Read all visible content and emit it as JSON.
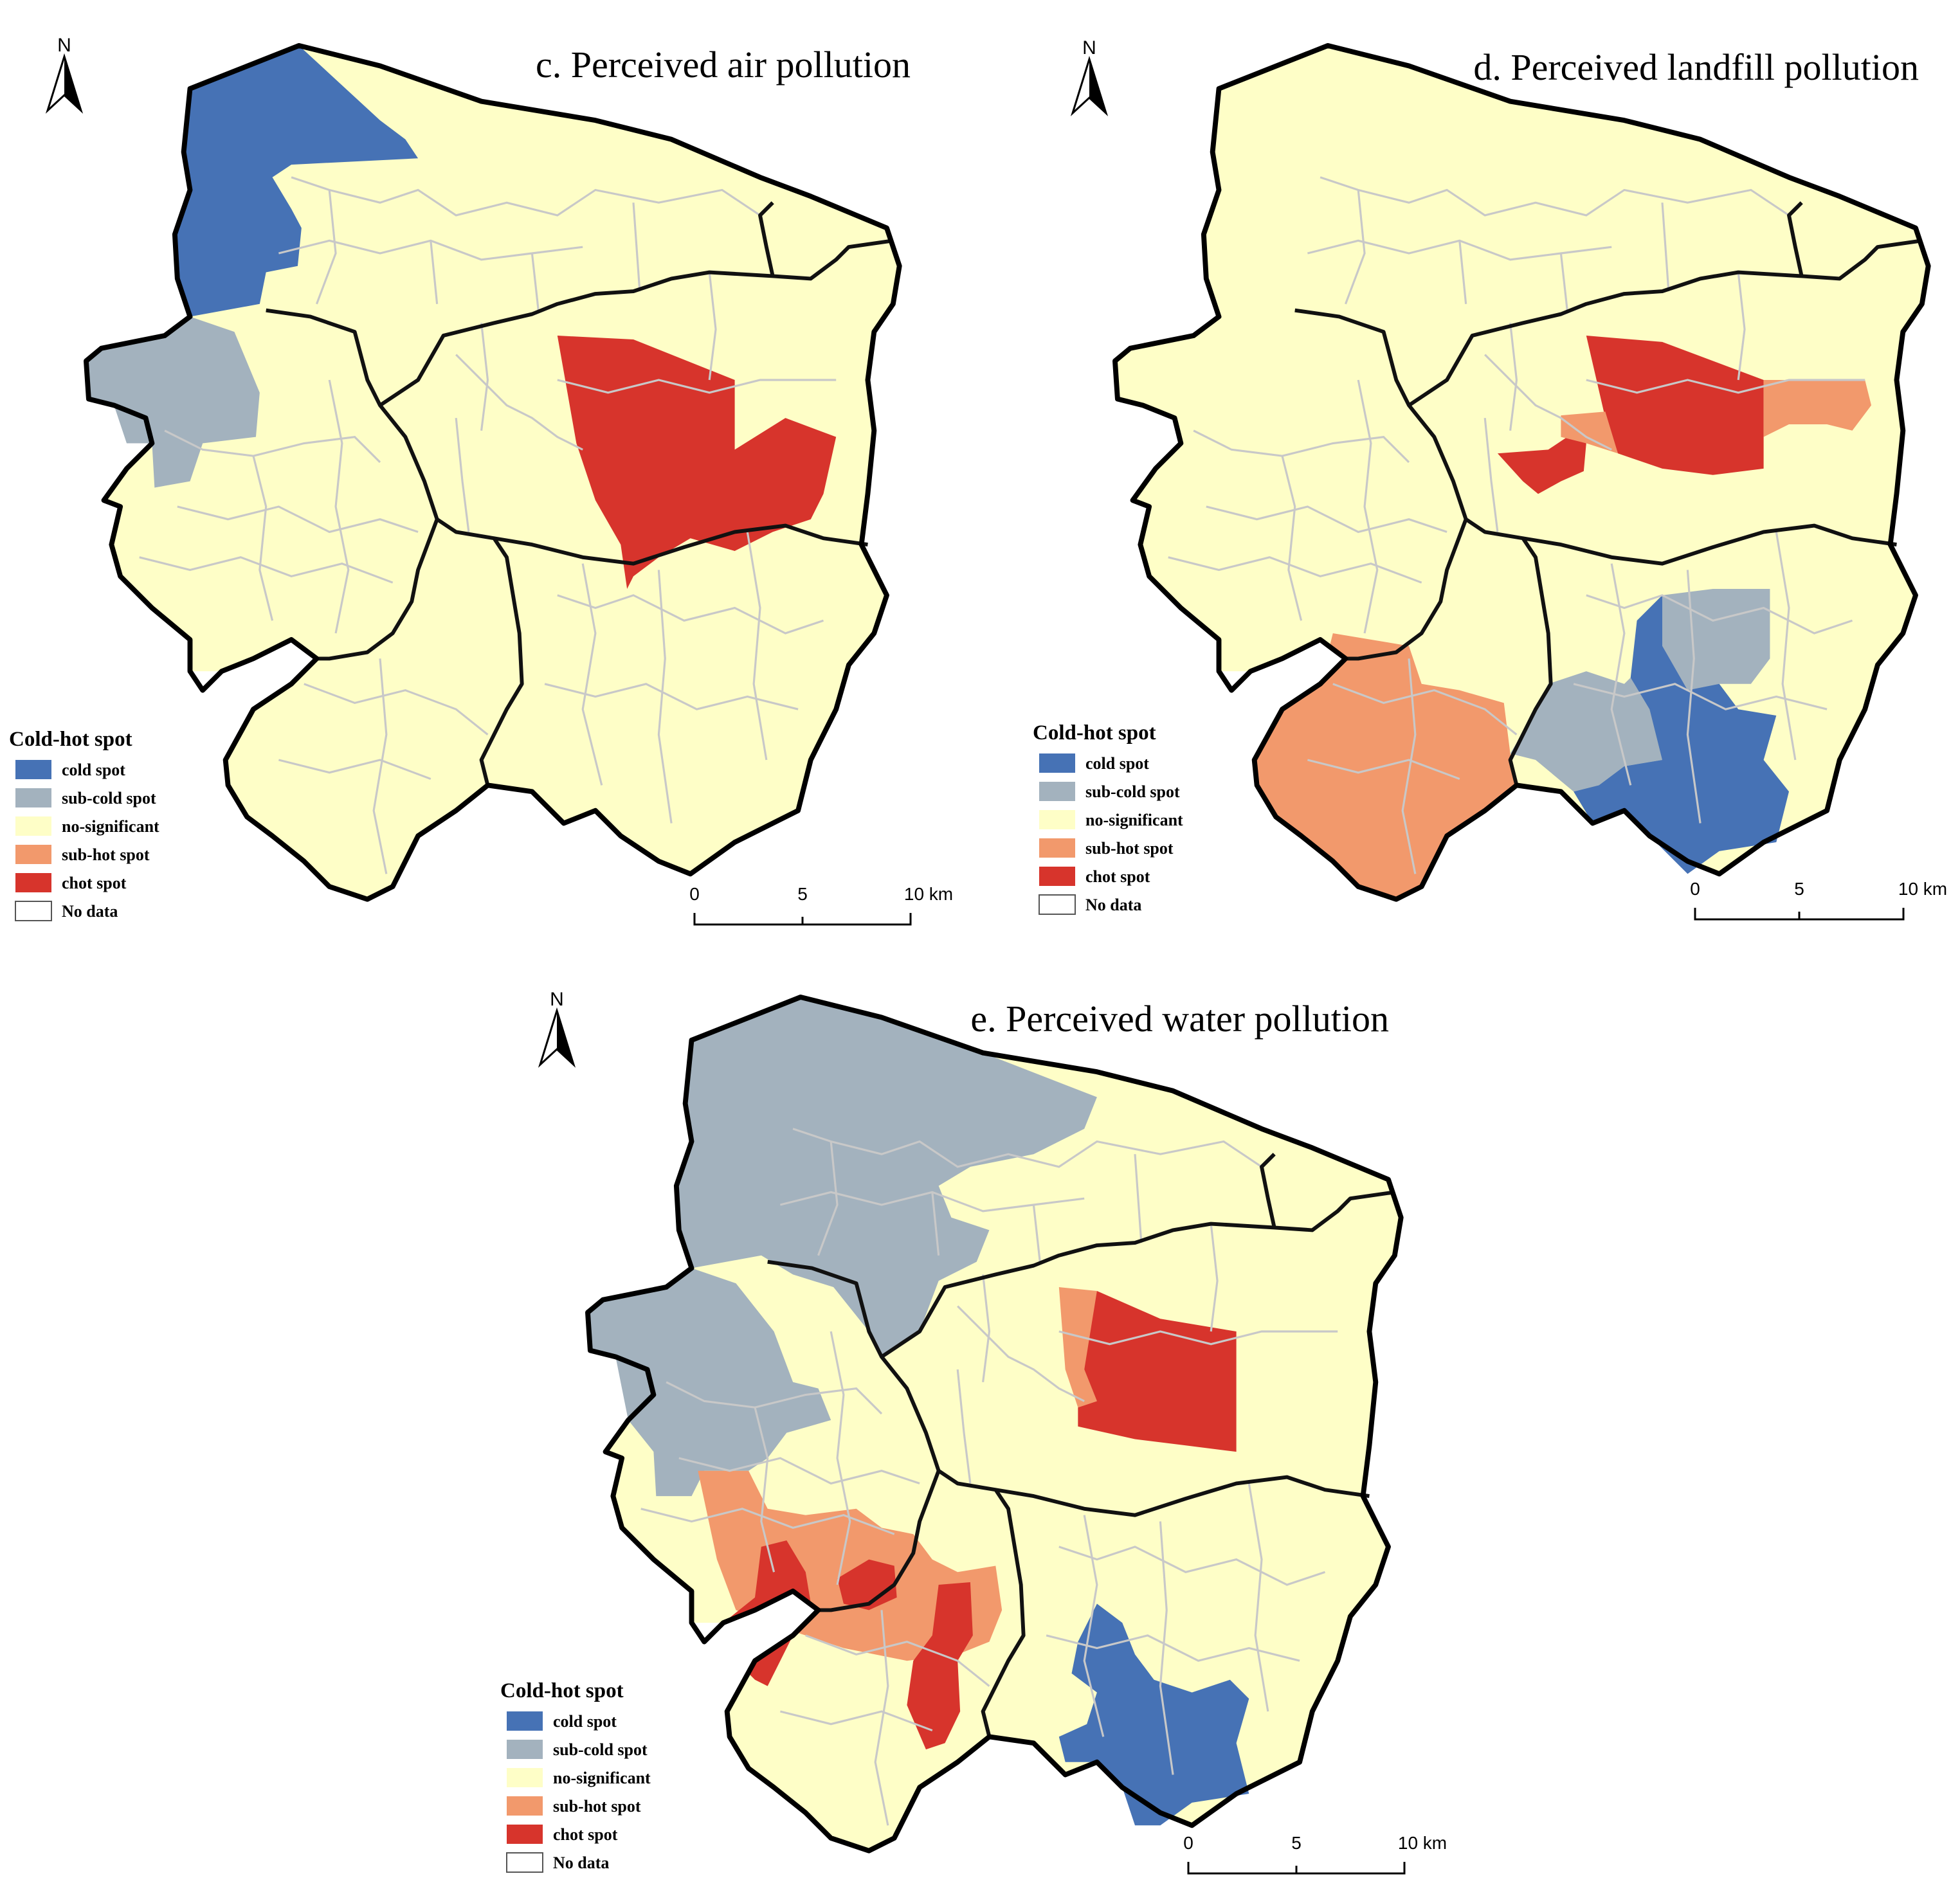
{
  "legend_colors": {
    "cold": "#4672B5",
    "sub_cold": "#A3B2BE",
    "no_sig": "#FEFEC7",
    "sub_hot": "#F2996C",
    "hot": "#D7342C",
    "no_data": "#FFFFFF"
  },
  "panels": [
    {
      "id": "c",
      "title": "c. Perceived air pollution",
      "north": "N",
      "legend_title": "Cold-hot spot",
      "legend": [
        {
          "key": "cold",
          "label": "cold spot"
        },
        {
          "key": "sub_cold",
          "label": "sub-cold spot"
        },
        {
          "key": "no_sig",
          "label": "no-significant"
        },
        {
          "key": "sub_hot",
          "label": "sub-hot spot"
        },
        {
          "key": "hot",
          "label": "chot spot"
        },
        {
          "key": "no_data",
          "label": "No data"
        }
      ],
      "scale_ticks": [
        "0",
        "5",
        "10 km"
      ]
    },
    {
      "id": "d",
      "title": "d. Perceived landfill pollution",
      "north": "N",
      "legend_title": "Cold-hot spot",
      "legend": [
        {
          "key": "cold",
          "label": "cold spot"
        },
        {
          "key": "sub_cold",
          "label": "sub-cold spot"
        },
        {
          "key": "no_sig",
          "label": "no-significant"
        },
        {
          "key": "sub_hot",
          "label": "sub-hot spot"
        },
        {
          "key": "hot",
          "label": "chot spot"
        },
        {
          "key": "no_data",
          "label": "No data"
        }
      ],
      "scale_ticks": [
        "0",
        "5",
        "10 km"
      ]
    },
    {
      "id": "e",
      "title": "e. Perceived water pollution",
      "north": "N",
      "legend_title": "Cold-hot spot",
      "legend": [
        {
          "key": "cold",
          "label": "cold spot"
        },
        {
          "key": "sub_cold",
          "label": "sub-cold spot"
        },
        {
          "key": "no_sig",
          "label": "no-significant"
        },
        {
          "key": "sub_hot",
          "label": "sub-hot spot"
        },
        {
          "key": "hot",
          "label": "chot spot"
        },
        {
          "key": "no_data",
          "label": "No data"
        }
      ],
      "scale_ticks": [
        "0",
        "5",
        "10 km"
      ]
    }
  ]
}
